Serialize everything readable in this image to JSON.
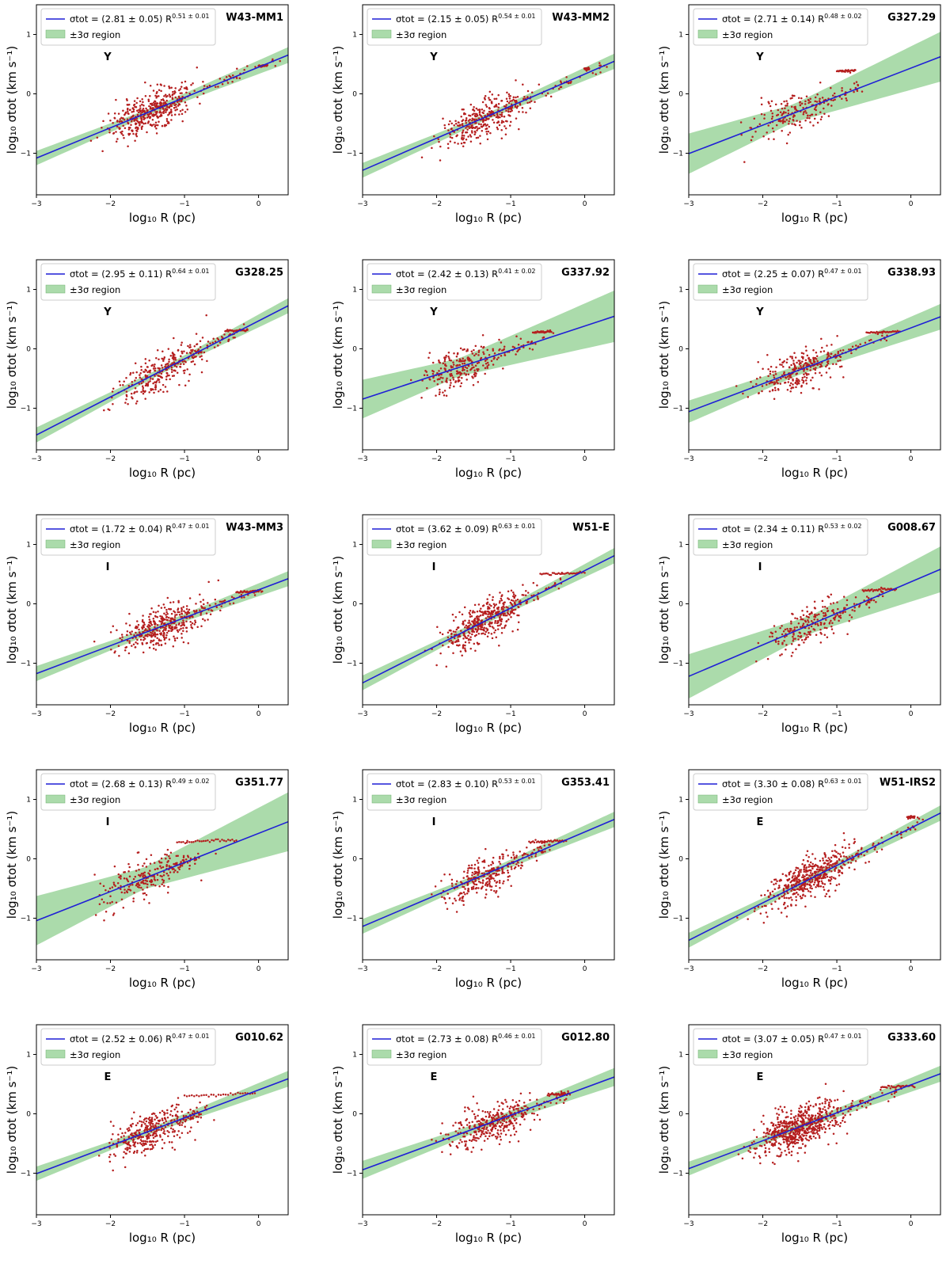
{
  "chart_data": [
    {
      "type": "scatter",
      "title": "W43-MM1",
      "class": "Y",
      "coef": 2.81,
      "coef_err": 0.05,
      "exp": 0.51,
      "exp_err": 0.01,
      "band": 0.05,
      "xcen": -1.45,
      "ycen": -0.32,
      "n": 420,
      "stripe_x": [
        0.0,
        0.12
      ],
      "stripe_y": 0.47,
      "xlabel": "log₁₀ R (pc)",
      "ylabel": "log₁₀ σtot (km s⁻¹)",
      "xlim": [
        -3,
        0.4
      ],
      "ylim": [
        -1.7,
        1.5
      ],
      "xticks": [
        -3,
        -2,
        -1,
        0
      ],
      "yticks": [
        -1,
        0,
        1
      ]
    },
    {
      "type": "scatter",
      "title": "W43-MM2",
      "class": "Y",
      "coef": 2.15,
      "coef_err": 0.05,
      "exp": 0.54,
      "exp_err": 0.01,
      "band": 0.05,
      "xcen": -1.35,
      "ycen": -0.42,
      "n": 330,
      "stripe_x": [
        0.0,
        0.06
      ],
      "stripe_y": 0.42,
      "xlabel": "log₁₀ R (pc)",
      "ylabel": "log₁₀ σtot (km s⁻¹)",
      "xlim": [
        -3,
        0.4
      ],
      "ylim": [
        -1.7,
        1.5
      ],
      "xticks": [
        -3,
        -2,
        -1,
        0
      ],
      "yticks": [
        -1,
        0,
        1
      ]
    },
    {
      "type": "scatter",
      "title": "G327.29",
      "class": "Y",
      "coef": 2.71,
      "coef_err": 0.14,
      "exp": 0.48,
      "exp_err": 0.02,
      "band": 0.15,
      "xcen": -1.6,
      "ycen": -0.35,
      "n": 160,
      "stripe_x": [
        -1.0,
        -0.75
      ],
      "stripe_y": 0.38,
      "xlabel": "log₁₀ R (pc)",
      "ylabel": "log₁₀ σtot (km s⁻¹)",
      "xlim": [
        -3,
        0.4
      ],
      "ylim": [
        -1.7,
        1.5
      ],
      "xticks": [
        -3,
        -2,
        -1,
        0
      ],
      "yticks": [
        -1,
        0,
        1
      ]
    },
    {
      "type": "scatter",
      "title": "G328.25",
      "class": "Y",
      "coef": 2.95,
      "coef_err": 0.11,
      "exp": 0.64,
      "exp_err": 0.01,
      "band": 0.05,
      "xcen": -1.3,
      "ycen": -0.45,
      "n": 280,
      "stripe_x": [
        -0.45,
        -0.15
      ],
      "stripe_y": 0.3,
      "xlabel": "log₁₀ R (pc)",
      "ylabel": "log₁₀ σtot (km s⁻¹)",
      "xlim": [
        -3,
        0.4
      ],
      "ylim": [
        -1.7,
        1.5
      ],
      "xticks": [
        -3,
        -2,
        -1,
        0
      ],
      "yticks": [
        -1,
        0,
        1
      ]
    },
    {
      "type": "scatter",
      "title": "G337.92",
      "class": "Y",
      "coef": 2.42,
      "coef_err": 0.13,
      "exp": 0.41,
      "exp_err": 0.02,
      "band": 0.15,
      "xcen": -1.7,
      "ycen": -0.35,
      "n": 230,
      "stripe_x": [
        -0.7,
        -0.45
      ],
      "stripe_y": 0.28,
      "xlabel": "log₁₀ R (pc)",
      "ylabel": "log₁₀ σtot (km s⁻¹)",
      "xlim": [
        -3,
        0.4
      ],
      "ylim": [
        -1.7,
        1.5
      ],
      "xticks": [
        -3,
        -2,
        -1,
        0
      ],
      "yticks": [
        -1,
        0,
        1
      ]
    },
    {
      "type": "scatter",
      "title": "G338.93",
      "class": "Y",
      "coef": 2.25,
      "coef_err": 0.07,
      "exp": 0.47,
      "exp_err": 0.01,
      "band": 0.08,
      "xcen": -1.5,
      "ycen": -0.4,
      "n": 260,
      "stripe_x": [
        -0.6,
        -0.15
      ],
      "stripe_y": 0.27,
      "xlabel": "log₁₀ R (pc)",
      "ylabel": "log₁₀ σtot (km s⁻¹)",
      "xlim": [
        -3,
        0.4
      ],
      "ylim": [
        -1.7,
        1.5
      ],
      "xticks": [
        -3,
        -2,
        -1,
        0
      ],
      "yticks": [
        -1,
        0,
        1
      ]
    },
    {
      "type": "scatter",
      "title": "W43-MM3",
      "class": "I",
      "coef": 1.72,
      "coef_err": 0.04,
      "exp": 0.47,
      "exp_err": 0.01,
      "band": 0.05,
      "xcen": -1.3,
      "ycen": -0.35,
      "n": 380,
      "stripe_x": [
        -0.3,
        0.05
      ],
      "stripe_y": 0.2,
      "xlabel": "log₁₀ R (pc)",
      "ylabel": "log₁₀ σtot (km s⁻¹)",
      "xlim": [
        -3,
        0.4
      ],
      "ylim": [
        -1.7,
        1.5
      ],
      "xticks": [
        -3,
        -2,
        -1,
        0
      ],
      "yticks": [
        -1,
        0,
        1
      ]
    },
    {
      "type": "scatter",
      "title": "W51-E",
      "class": "I",
      "coef": 3.62,
      "coef_err": 0.09,
      "exp": 0.63,
      "exp_err": 0.01,
      "band": 0.05,
      "xcen": -1.35,
      "ycen": -0.3,
      "n": 400,
      "stripe_x": [
        -0.6,
        0.0
      ],
      "stripe_y": 0.5,
      "xlabel": "log₁₀ R (pc)",
      "ylabel": "log₁₀ σtot (km s⁻¹)",
      "xlim": [
        -3,
        0.4
      ],
      "ylim": [
        -1.7,
        1.5
      ],
      "xticks": [
        -3,
        -2,
        -1,
        0
      ],
      "yticks": [
        -1,
        0,
        1
      ]
    },
    {
      "type": "scatter",
      "title": "G008.67",
      "class": "I",
      "coef": 2.34,
      "coef_err": 0.11,
      "exp": 0.53,
      "exp_err": 0.02,
      "band": 0.15,
      "xcen": -1.35,
      "ycen": -0.35,
      "n": 200,
      "stripe_x": [
        -0.65,
        -0.2
      ],
      "stripe_y": 0.22,
      "xlabel": "log₁₀ R (pc)",
      "ylabel": "log₁₀ σtot (km s⁻¹)",
      "xlim": [
        -3,
        0.4
      ],
      "ylim": [
        -1.7,
        1.5
      ],
      "xticks": [
        -3,
        -2,
        -1,
        0
      ],
      "yticks": [
        -1,
        0,
        1
      ]
    },
    {
      "type": "scatter",
      "title": "G351.77",
      "class": "I",
      "coef": 2.68,
      "coef_err": 0.13,
      "exp": 0.49,
      "exp_err": 0.02,
      "band": 0.18,
      "xcen": -1.55,
      "ycen": -0.38,
      "n": 200,
      "stripe_x": [
        -1.1,
        -0.3
      ],
      "stripe_y": 0.28,
      "xlabel": "log₁₀ R (pc)",
      "ylabel": "log₁₀ σtot (km s⁻¹)",
      "xlim": [
        -3,
        0.4
      ],
      "ylim": [
        -1.7,
        1.5
      ],
      "xticks": [
        -3,
        -2,
        -1,
        0
      ],
      "yticks": [
        -1,
        0,
        1
      ]
    },
    {
      "type": "scatter",
      "title": "G353.41",
      "class": "I",
      "coef": 2.83,
      "coef_err": 0.1,
      "exp": 0.53,
      "exp_err": 0.01,
      "band": 0.05,
      "xcen": -1.35,
      "ycen": -0.35,
      "n": 260,
      "stripe_x": [
        -0.75,
        -0.25
      ],
      "stripe_y": 0.28,
      "xlabel": "log₁₀ R (pc)",
      "ylabel": "log₁₀ σtot (km s⁻¹)",
      "xlim": [
        -3,
        0.4
      ],
      "ylim": [
        -1.7,
        1.5
      ],
      "xticks": [
        -3,
        -2,
        -1,
        0
      ],
      "yticks": [
        -1,
        0,
        1
      ]
    },
    {
      "type": "scatter",
      "title": "W51-IRS2",
      "class": "E",
      "coef": 3.3,
      "coef_err": 0.08,
      "exp": 0.63,
      "exp_err": 0.01,
      "band": 0.05,
      "xcen": -1.35,
      "ycen": -0.35,
      "n": 480,
      "stripe_x": [
        -0.05,
        0.05
      ],
      "stripe_y": 0.7,
      "xlabel": "log₁₀ R (pc)",
      "ylabel": "log₁₀ σtot (km s⁻¹)",
      "xlim": [
        -3,
        0.4
      ],
      "ylim": [
        -1.7,
        1.5
      ],
      "xticks": [
        -3,
        -2,
        -1,
        0
      ],
      "yticks": [
        -1,
        0,
        1
      ]
    },
    {
      "type": "scatter",
      "title": "G010.62",
      "class": "E",
      "coef": 2.52,
      "coef_err": 0.06,
      "exp": 0.47,
      "exp_err": 0.01,
      "band": 0.05,
      "xcen": -1.45,
      "ycen": -0.33,
      "n": 330,
      "stripe_x": [
        -1.0,
        -0.05
      ],
      "stripe_y": 0.3,
      "xlabel": "log₁₀ R (pc)",
      "ylabel": "log₁₀ σtot (km s⁻¹)",
      "xlim": [
        -3,
        0.4
      ],
      "ylim": [
        -1.7,
        1.5
      ],
      "xticks": [
        -3,
        -2,
        -1,
        0
      ],
      "yticks": [
        -1,
        0,
        1
      ]
    },
    {
      "type": "scatter",
      "title": "G012.80",
      "class": "E",
      "coef": 2.73,
      "coef_err": 0.08,
      "exp": 0.46,
      "exp_err": 0.01,
      "band": 0.06,
      "xcen": -1.3,
      "ycen": -0.3,
      "n": 330,
      "stripe_x": [
        -0.5,
        -0.2
      ],
      "stripe_y": 0.32,
      "xlabel": "log₁₀ R (pc)",
      "ylabel": "log₁₀ σtot (km s⁻¹)",
      "xlim": [
        -3,
        0.4
      ],
      "ylim": [
        -1.7,
        1.5
      ],
      "xticks": [
        -3,
        -2,
        -1,
        0
      ],
      "yticks": [
        -1,
        0,
        1
      ]
    },
    {
      "type": "scatter",
      "title": "G333.60",
      "class": "E",
      "coef": 3.07,
      "coef_err": 0.05,
      "exp": 0.47,
      "exp_err": 0.01,
      "band": 0.05,
      "xcen": -1.5,
      "ycen": -0.3,
      "n": 650,
      "stripe_x": [
        -0.4,
        0.05
      ],
      "stripe_y": 0.45,
      "xlabel": "log₁₀ R (pc)",
      "ylabel": "log₁₀ σtot (km s⁻¹)",
      "xlim": [
        -3,
        0.4
      ],
      "ylim": [
        -1.7,
        1.5
      ],
      "xticks": [
        -3,
        -2,
        -1,
        0
      ],
      "yticks": [
        -1,
        0,
        1
      ]
    }
  ],
  "legend": {
    "fit_label": "σtot = ",
    "region_label": "±3σ region"
  },
  "colors": {
    "fit_line": "#1f1fd6",
    "band_fill": "#8fcf8f",
    "points": "#b51f1f",
    "axis": "#000000"
  }
}
